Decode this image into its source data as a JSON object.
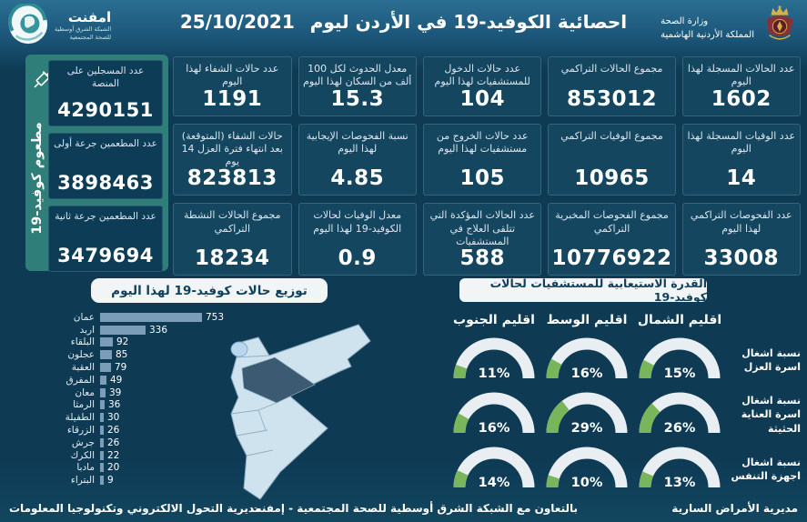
{
  "header": {
    "title": "احصائية الكوفيد-19 في الأردن ليوم",
    "date": "25/10/2021",
    "ministry": {
      "line1": "وزارة الصحة",
      "line2": "المملكة الأردنية الهاشمية"
    },
    "emphnet": {
      "name": "امفنت",
      "line1": "الشبكة الشرق أوسطية",
      "line2": "للصحة المجتمعية"
    }
  },
  "vaccine_panel": {
    "vertical_label": "مطعوم كوفيد-19",
    "cards": [
      {
        "label": "عدد المسجلين على المنصة",
        "value": "4290151"
      },
      {
        "label": "عدد المطعمين جرعة أولى",
        "value": "3898463"
      },
      {
        "label": "عدد المطعمين جرعة ثانية",
        "value": "3479694"
      }
    ]
  },
  "stats_cards": [
    {
      "label": "عدد الحالات المسجلة لهذا اليوم",
      "value": "1602"
    },
    {
      "label": "مجموع الحالات التراكمي",
      "value": "853012"
    },
    {
      "label": "عدد حالات الدخول للمستشفيات لهذا اليوم",
      "value": "104"
    },
    {
      "label": "معدل الحدوث لكل 100 ألف من السكان لهذا اليوم",
      "value": "15.3"
    },
    {
      "label": "عدد حالات الشفاء لهذا اليوم",
      "value": "1191"
    },
    {
      "label": "عدد الوفيات المسجلة لهذا اليوم",
      "value": "14"
    },
    {
      "label": "مجموع الوفيات التراكمي",
      "value": "10965"
    },
    {
      "label": "عدد حالات الخروج من مستشفيات لهذا اليوم",
      "value": "105"
    },
    {
      "label": "نسبة الفحوصات الإيجابية لهذا اليوم",
      "value": "4.85"
    },
    {
      "label": "حالات الشفاء (المتوقعة) بعد انتهاء فترة العزل 14 يوم",
      "value": "823813"
    },
    {
      "label": "عدد الفحوصات التراكمي لهذا اليوم",
      "value": "33008"
    },
    {
      "label": "مجموع الفحوصات المخبرية التراكمي",
      "value": "10776922"
    },
    {
      "label": "عدد الحالات المؤكدة التي تتلقى العلاج في المستشفيات",
      "value": "588"
    },
    {
      "label": "معدل الوفيات لحالات الكوفيد-19 لهذا اليوم",
      "value": "0.9"
    },
    {
      "label": "مجموع الحالات النشطة التراكمي",
      "value": "18234"
    }
  ],
  "chart_data": [
    {
      "type": "bar",
      "orientation": "horizontal",
      "title": "توزيع حالات كوفيد-19 لهذا اليوم",
      "categories": [
        "عمان",
        "اربد",
        "البلقاء",
        "عجلون",
        "العقبة",
        "المفرق",
        "معان",
        "الرمثا",
        "الطفيلة",
        "الزرقاء",
        "جرش",
        "الكرك",
        "مادبا",
        "البتراء"
      ],
      "values": [
        753,
        336,
        92,
        85,
        79,
        49,
        39,
        36,
        30,
        26,
        26,
        22,
        20,
        9
      ],
      "xlim": [
        0,
        800
      ],
      "value_labels": true,
      "grid": false
    },
    {
      "type": "gauge-grid",
      "title": "القدرة الاستيعابية للمستشفيات لحالات كوفيد-19",
      "columns": [
        "اقليم الشمال",
        "اقليم الوسط",
        "اقليم الجنوب"
      ],
      "rows": [
        {
          "label": "نسبة اشغال اسرة العزل",
          "values": [
            15,
            16,
            11
          ]
        },
        {
          "label": "نسبة اشغال اسرة العناية الحثيثة",
          "values": [
            26,
            29,
            16
          ]
        },
        {
          "label": "نسبة اشغال اجهزة التنفس",
          "values": [
            13,
            10,
            14
          ]
        }
      ],
      "unit": "%",
      "range": [
        0,
        100
      ]
    }
  ],
  "footer": {
    "right": "مديرية الأمراض السارية",
    "center": "بالتعاون مع الشبكة الشرق أوسطية للصحة المجتمعية - إمفنت",
    "left": "مديرية التحول الالكتروني وتكنولوجيا المعلومات"
  },
  "colors": {
    "header_top": "#2b6f93",
    "background": "#0e3a54",
    "card": "#15465f",
    "card_border": "#2d6584",
    "teal_panel": "#2f7e79",
    "vaccine_card": "#0d3c57",
    "label_text": "#d8e7f1",
    "bar": "#7b9db8",
    "pill_bg": "#f2f5f6",
    "pill_text": "#10405c",
    "gauge_track": "#e9eef2",
    "gauge_green": "#79b65b",
    "map_light": "#cfe3ef",
    "map_dark": "#3c5a72",
    "map_highlight": "#b9d6ec"
  }
}
